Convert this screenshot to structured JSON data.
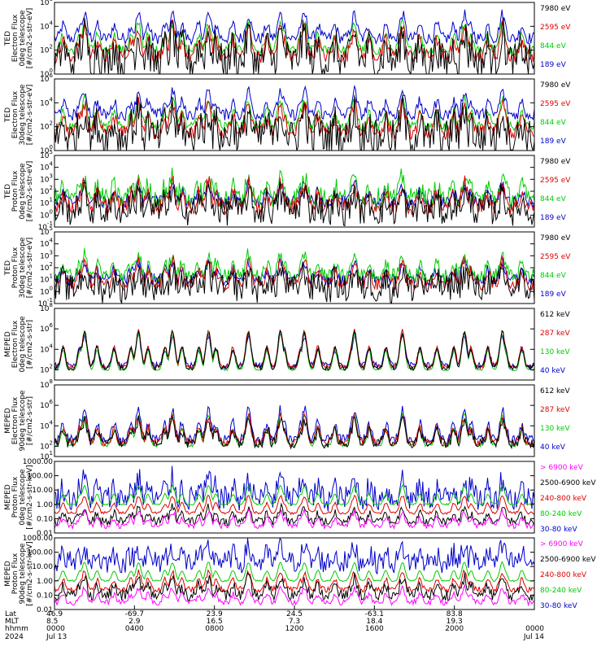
{
  "chart_data": {
    "type": "line",
    "title": "",
    "x_axis": {
      "range_hours": [
        0,
        24
      ],
      "tick_hours": [
        0,
        4,
        8,
        12,
        16,
        20,
        24
      ],
      "row_labels": [
        "Lat",
        "MLT",
        "hhmm",
        "2024"
      ],
      "lat": [
        "46.9",
        "-69.7",
        "23.9",
        "24.5",
        "-63.1",
        "83.8",
        ""
      ],
      "mlt": [
        "8.5",
        "2.9",
        "16.5",
        "7.3",
        "18.4",
        "19.3",
        ""
      ],
      "hhmm": [
        "0000",
        "0400",
        "0800",
        "1200",
        "1600",
        "2000",
        "0000"
      ],
      "date": [
        "Jul 13",
        "",
        "",
        "",
        "",
        "",
        "Jul 14"
      ]
    },
    "panels": [
      {
        "ylabel": [
          "TED",
          "Electron Flux",
          "0deg telescope",
          "[#/cm2-s-str-eV]"
        ],
        "yscale": "log",
        "ylim_exp": [
          0,
          6
        ],
        "ticks": [
          {
            "e": 0,
            "t": "10",
            "s": "0"
          },
          {
            "e": 2,
            "t": "10",
            "s": "2"
          },
          {
            "e": 4,
            "t": "10",
            "s": "4"
          },
          {
            "e": 6,
            "t": "10",
            "s": "6"
          }
        ],
        "series": [
          {
            "name": "7980 eV",
            "color": "#000000",
            "base": 1.0,
            "noise": 1.6,
            "peak": 2.4
          },
          {
            "name": "2595 eV",
            "color": "#dd0000",
            "base": 1.5,
            "noise": 0.6,
            "peak": 2.5
          },
          {
            "name": "844 eV",
            "color": "#00cc00",
            "base": 2.0,
            "noise": 0.4,
            "peak": 2.3
          },
          {
            "name": "189 eV",
            "color": "#0000cc",
            "base": 3.0,
            "noise": 0.5,
            "peak": 2.0
          }
        ]
      },
      {
        "ylabel": [
          "TED",
          "Electron Flux",
          "30deg telescope",
          "[#/cm2-s-str-eV]"
        ],
        "yscale": "log",
        "ylim_exp": [
          0,
          6
        ],
        "ticks": [
          {
            "e": 0,
            "t": "10",
            "s": "0"
          },
          {
            "e": 2,
            "t": "10",
            "s": "2"
          },
          {
            "e": 4,
            "t": "10",
            "s": "4"
          },
          {
            "e": 6,
            "t": "10",
            "s": "6"
          }
        ],
        "series": [
          {
            "name": "7980 eV",
            "color": "#000000",
            "base": 1.0,
            "noise": 1.6,
            "peak": 2.4
          },
          {
            "name": "2595 eV",
            "color": "#dd0000",
            "base": 1.5,
            "noise": 0.6,
            "peak": 2.5
          },
          {
            "name": "844 eV",
            "color": "#00cc00",
            "base": 2.0,
            "noise": 0.4,
            "peak": 2.3
          },
          {
            "name": "189 eV",
            "color": "#0000cc",
            "base": 3.0,
            "noise": 0.5,
            "peak": 2.0
          }
        ]
      },
      {
        "ylabel": [
          "TED",
          "Proton Flux",
          "0deg telescope",
          "[#/cm2-s-str-eV]"
        ],
        "yscale": "log",
        "ylim_exp": [
          -1,
          5
        ],
        "ticks": [
          {
            "e": -1,
            "t": "10",
            "s": "-1"
          },
          {
            "e": 0,
            "t": "10",
            "s": "0"
          },
          {
            "e": 1,
            "t": "10",
            "s": "1"
          },
          {
            "e": 2,
            "t": "10",
            "s": "2"
          },
          {
            "e": 3,
            "t": "10",
            "s": "3"
          },
          {
            "e": 4,
            "t": "10",
            "s": "4"
          },
          {
            "e": 5,
            "t": "10",
            "s": "5"
          }
        ],
        "series": [
          {
            "name": "7980 eV",
            "color": "#000000",
            "base": 0.3,
            "noise": 1.2,
            "peak": 1.5
          },
          {
            "name": "2595 eV",
            "color": "#dd0000",
            "base": 0.7,
            "noise": 0.7,
            "peak": 2.0
          },
          {
            "name": "844 eV",
            "color": "#00cc00",
            "base": 1.4,
            "noise": 0.9,
            "peak": 1.8
          },
          {
            "name": "189 eV",
            "color": "#0000cc",
            "base": 1.1,
            "noise": 0.5,
            "peak": 1.5
          }
        ]
      },
      {
        "ylabel": [
          "TED",
          "Proton Flux",
          "30deg telescope",
          "[#/cm2-s-str-eV]"
        ],
        "yscale": "log",
        "ylim_exp": [
          -1,
          5
        ],
        "ticks": [
          {
            "e": -1,
            "t": "10",
            "s": "-1"
          },
          {
            "e": 0,
            "t": "10",
            "s": "0"
          },
          {
            "e": 1,
            "t": "10",
            "s": "1"
          },
          {
            "e": 2,
            "t": "10",
            "s": "2"
          },
          {
            "e": 3,
            "t": "10",
            "s": "3"
          },
          {
            "e": 4,
            "t": "10",
            "s": "4"
          },
          {
            "e": 5,
            "t": "10",
            "s": "5"
          }
        ],
        "series": [
          {
            "name": "7980 eV",
            "color": "#000000",
            "base": 0.2,
            "noise": 1.2,
            "peak": 1.5
          },
          {
            "name": "2595 eV",
            "color": "#dd0000",
            "base": 0.6,
            "noise": 0.5,
            "peak": 2.0
          },
          {
            "name": "844 eV",
            "color": "#00cc00",
            "base": 1.3,
            "noise": 0.6,
            "peak": 1.8
          },
          {
            "name": "189 eV",
            "color": "#0000cc",
            "base": 1.0,
            "noise": 0.5,
            "peak": 1.5
          }
        ]
      },
      {
        "ylabel": [
          "MEPED",
          "Electron Flux",
          "0deg telescope",
          "[#/cm2-s-str]"
        ],
        "yscale": "log",
        "ylim_exp": [
          1,
          8
        ],
        "ticks": [
          {
            "e": 2,
            "t": "10",
            "s": "2"
          },
          {
            "e": 4,
            "t": "10",
            "s": "4"
          },
          {
            "e": 6,
            "t": "10",
            "s": "6"
          },
          {
            "e": 8,
            "t": "10",
            "s": "8"
          }
        ],
        "series": [
          {
            "name": "612 keV",
            "color": "#000000",
            "base": 2.2,
            "noise": 0.25,
            "peak": 3.5
          },
          {
            "name": "287 keV",
            "color": "#dd0000",
            "base": 2.3,
            "noise": 0.2,
            "peak": 3.5
          },
          {
            "name": "130 keV",
            "color": "#00cc00",
            "base": 2.0,
            "noise": 0.08,
            "peak": 3.5
          },
          {
            "name": "40 keV",
            "color": "#0000cc",
            "base": 2.4,
            "noise": 0.35,
            "peak": 3.0
          }
        ]
      },
      {
        "ylabel": [
          "MEPED",
          "Electron Flux",
          "90deg telescope",
          "[#/cm2-s-str]"
        ],
        "yscale": "log",
        "ylim_exp": [
          1,
          8
        ],
        "ticks": [
          {
            "e": 1,
            "t": "10",
            "s": "1"
          },
          {
            "e": 2,
            "t": "10",
            "s": "2"
          },
          {
            "e": 4,
            "t": "10",
            "s": "4"
          },
          {
            "e": 6,
            "t": "10",
            "s": "6"
          },
          {
            "e": 8,
            "t": "10",
            "s": "8"
          }
        ],
        "series": [
          {
            "name": "612 keV",
            "color": "#000000",
            "base": 2.3,
            "noise": 0.5,
            "peak": 2.2
          },
          {
            "name": "287 keV",
            "color": "#dd0000",
            "base": 2.4,
            "noise": 0.4,
            "peak": 2.5
          },
          {
            "name": "130 keV",
            "color": "#00cc00",
            "base": 2.1,
            "noise": 0.15,
            "peak": 3.0
          },
          {
            "name": "40 keV",
            "color": "#0000cc",
            "base": 2.6,
            "noise": 0.5,
            "peak": 3.0
          }
        ]
      },
      {
        "ylabel": [
          "MEPED",
          "Proton Flux",
          "0deg telescope",
          "[#/cm2-s-str-keV]"
        ],
        "yscale": "log",
        "ylim_exp": [
          -2,
          3
        ],
        "ticks": [
          {
            "e": -2,
            "t": "0.01"
          },
          {
            "e": -1,
            "t": "0.10"
          },
          {
            "e": 0,
            "t": "1.00"
          },
          {
            "e": 1,
            "t": "10.00"
          },
          {
            "e": 2,
            "t": "100.00"
          },
          {
            "e": 3,
            "t": "1000.00"
          }
        ],
        "series": [
          {
            "name": "> 6900 keV",
            "color": "#ff00ff",
            "base": -1.5,
            "noise": 0.2,
            "peak": 1.0
          },
          {
            "name": "2500-6900 keV",
            "color": "#000000",
            "base": -1.2,
            "noise": 0.3,
            "peak": 1.0
          },
          {
            "name": "240-800 keV",
            "color": "#dd0000",
            "base": -0.6,
            "noise": 0.1,
            "peak": 1.2
          },
          {
            "name": "80-240 keV",
            "color": "#00cc00",
            "base": 0.0,
            "noise": 0.05,
            "peak": 1.3
          },
          {
            "name": "30-80 keV",
            "color": "#0000cc",
            "base": 0.4,
            "noise": 0.9,
            "peak": 1.4
          }
        ]
      },
      {
        "ylabel": [
          "MEPED",
          "Proton Flux",
          "90deg telescope",
          "[#/cm2-s-str-keV]"
        ],
        "yscale": "log",
        "ylim_exp": [
          -2,
          3
        ],
        "ticks": [
          {
            "e": -2,
            "t": "0.01"
          },
          {
            "e": -1,
            "t": "0.10"
          },
          {
            "e": 0,
            "t": "1.00"
          },
          {
            "e": 1,
            "t": "10.00"
          },
          {
            "e": 2,
            "t": "100.00"
          },
          {
            "e": 3,
            "t": "1000.00"
          }
        ],
        "series": [
          {
            "name": "> 6900 keV",
            "color": "#ff00ff",
            "base": -1.5,
            "noise": 0.2,
            "peak": 1.0
          },
          {
            "name": "2500-6900 keV",
            "color": "#000000",
            "base": -1.0,
            "noise": 0.4,
            "peak": 1.2
          },
          {
            "name": "240-800 keV",
            "color": "#dd0000",
            "base": -0.6,
            "noise": 0.2,
            "peak": 1.2
          },
          {
            "name": "80-240 keV",
            "color": "#00cc00",
            "base": 0.0,
            "noise": 0.05,
            "peak": 1.3
          },
          {
            "name": "30-80 keV",
            "color": "#0000cc",
            "base": 1.3,
            "noise": 0.8,
            "peak": 1.0
          }
        ]
      }
    ],
    "event_hours": [
      1.5,
      4.2,
      5.9,
      7.7,
      9.7,
      11.3,
      12.5,
      15.0,
      17.4,
      20.5,
      22.4
    ]
  }
}
